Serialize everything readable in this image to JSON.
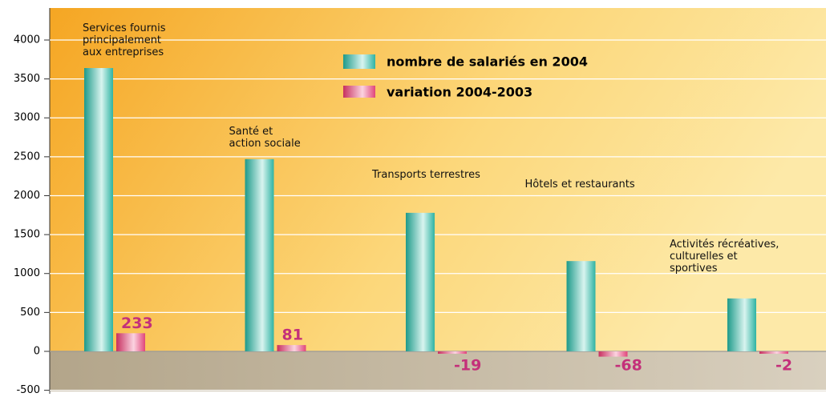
{
  "chart_data": {
    "type": "bar",
    "categories": [
      "Services fournis\nprincipalement\naux entreprises",
      "Santé et\naction sociale",
      "Transports terrestres",
      "Hôtels et restaurants",
      "Activités récréatives,\nculturelles et\nsportives"
    ],
    "series": [
      {
        "name": "nombre de salariés en 2004",
        "color": "#2fb3a3",
        "values": [
          3640,
          2470,
          1780,
          1160,
          680
        ]
      },
      {
        "name": "variation 2004-2003",
        "color": "#e0457a",
        "values": [
          233,
          81,
          -19,
          -68,
          -2
        ]
      }
    ],
    "ylim": [
      -500,
      4000
    ],
    "yticks": [
      -500,
      0,
      500,
      1000,
      1500,
      2000,
      2500,
      3000,
      3500,
      4000
    ],
    "grid": true
  }
}
